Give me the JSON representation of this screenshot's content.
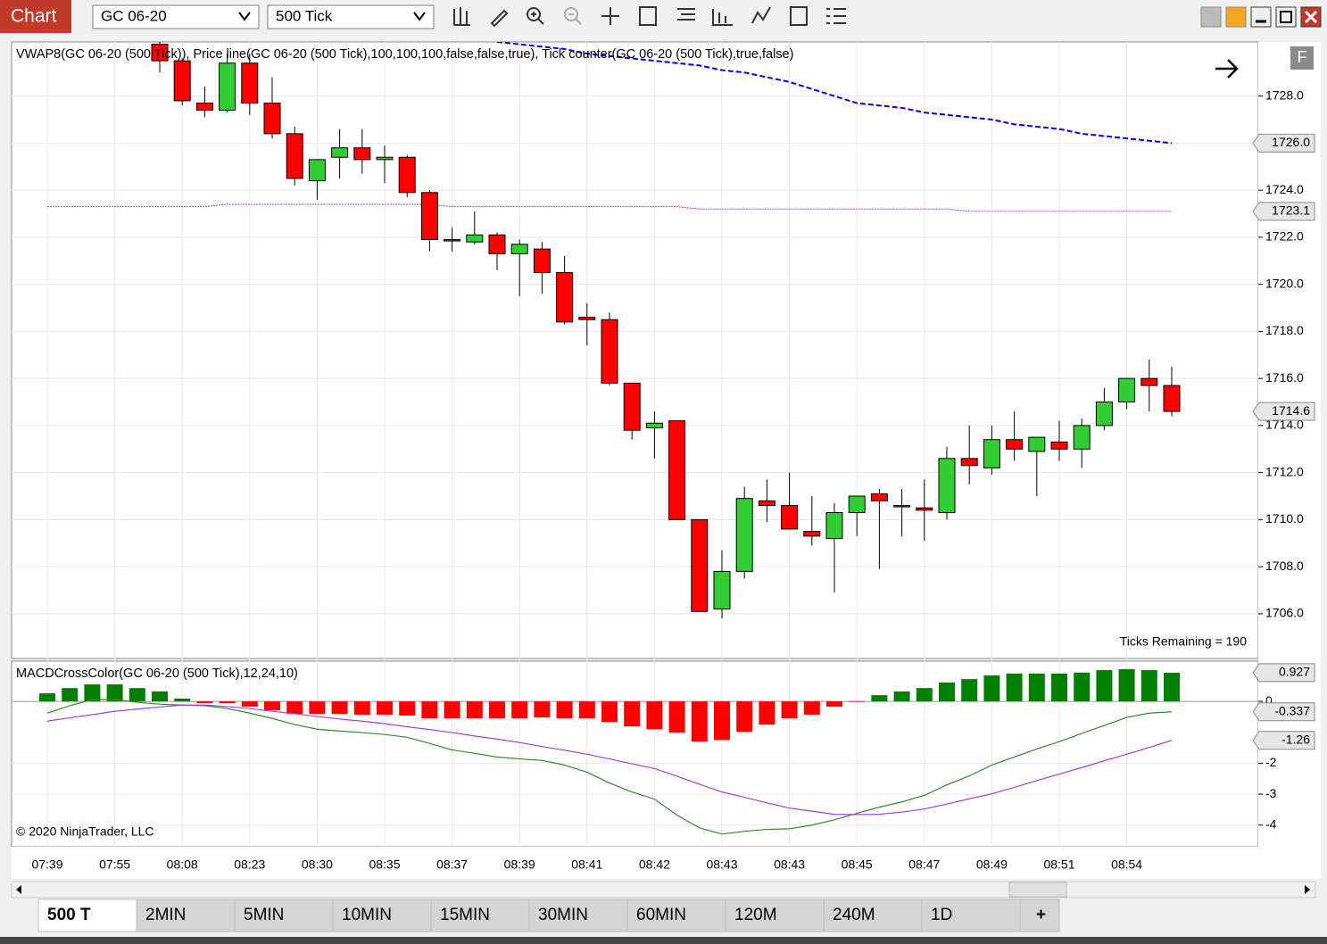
{
  "window": {
    "title": "Chart",
    "instrument": "GC 06-20",
    "interval": "500 Tick",
    "f_button": "F"
  },
  "tabs": [
    "500 T",
    "2MIN",
    "5MIN",
    "10MIN",
    "15MIN",
    "30MIN",
    "60MIN",
    "120M",
    "240M",
    "1D",
    "+"
  ],
  "chart_data": [
    {
      "type": "candlestick",
      "title": "VWAP8(GC 06-20 (500 Tick)), Price line(GC 06-20 (500 Tick),100,100,100,false,false,true), Tick counter(GC 06-20 (500 Tick),true,false)",
      "annotation": "Ticks Remaining = 190",
      "categories": [
        "07:39",
        null,
        null,
        "07:55",
        null,
        null,
        "08:08",
        null,
        null,
        "08:23",
        null,
        null,
        "08:30",
        null,
        null,
        "08:35",
        null,
        null,
        "08:37",
        null,
        null,
        "08:39",
        null,
        null,
        "08:41",
        null,
        null,
        "08:42",
        null,
        null,
        "08:43",
        null,
        null,
        "08:43",
        null,
        null,
        "08:45",
        null,
        null,
        "08:47",
        null,
        null,
        "08:49",
        null,
        null,
        "08:51",
        null,
        null,
        "08:54",
        null,
        null
      ],
      "open": [
        null,
        null,
        null,
        null,
        null,
        1730.2,
        1729.5,
        1727.7,
        1727.4,
        1729.4,
        1727.7,
        1726.4,
        1724.4,
        1725.4,
        1725.8,
        1725.3,
        1725.4,
        1723.9,
        1721.9,
        1721.8,
        1722.1,
        1721.3,
        1721.5,
        1720.5,
        1718.6,
        1718.5,
        1715.8,
        1713.9,
        1714.2,
        1710.0,
        1706.2,
        1707.8,
        1710.8,
        1710.6,
        1709.5,
        1709.2,
        1710.3,
        1711.1,
        1710.6,
        1710.5,
        1710.3,
        1712.6,
        1712.2,
        1713.4,
        1712.9,
        1713.3,
        1713.0,
        1714.0,
        1715.0,
        1716.0,
        1715.7
      ],
      "high": [
        null,
        null,
        null,
        null,
        null,
        1730.5,
        1729.6,
        1728.4,
        1729.8,
        1729.8,
        1728.8,
        1726.7,
        1725.3,
        1726.6,
        1726.6,
        1725.9,
        1725.5,
        1724.0,
        1722.4,
        1723.1,
        1722.2,
        1721.9,
        1721.8,
        1721.2,
        1719.2,
        1718.8,
        1715.8,
        1714.6,
        1714.2,
        1710.0,
        1708.7,
        1711.4,
        1711.7,
        1712.0,
        1711.0,
        1710.7,
        1711.0,
        1711.3,
        1711.3,
        1711.7,
        1713.1,
        1714.0,
        1714.0,
        1714.6,
        1713.5,
        1714.2,
        1714.3,
        1715.6,
        1716.0,
        1716.8,
        1716.5
      ],
      "low": [
        null,
        null,
        null,
        null,
        null,
        1729.0,
        1727.6,
        1727.1,
        1727.3,
        1727.2,
        1726.2,
        1724.2,
        1723.6,
        1724.5,
        1724.7,
        1724.3,
        1723.7,
        1721.4,
        1721.4,
        1721.7,
        1720.6,
        1719.5,
        1719.6,
        1718.3,
        1717.4,
        1715.7,
        1713.4,
        1712.6,
        1710.0,
        1706.1,
        1705.8,
        1707.5,
        1709.9,
        1709.6,
        1708.9,
        1706.9,
        1709.3,
        1707.9,
        1709.3,
        1709.1,
        1710.0,
        1711.5,
        1711.9,
        1712.5,
        1711.0,
        1712.5,
        1712.2,
        1713.8,
        1714.7,
        1714.6,
        1714.4
      ],
      "close": [
        null,
        null,
        null,
        null,
        null,
        1729.5,
        1727.8,
        1727.4,
        1729.4,
        1727.7,
        1726.4,
        1724.5,
        1725.3,
        1725.8,
        1725.3,
        1725.4,
        1723.9,
        1721.9,
        1721.9,
        1722.1,
        1721.3,
        1721.7,
        1720.5,
        1718.4,
        1718.5,
        1715.8,
        1713.8,
        1714.1,
        1710.0,
        1706.1,
        1707.8,
        1710.9,
        1710.6,
        1709.6,
        1709.3,
        1710.3,
        1711.0,
        1710.8,
        1710.6,
        1710.4,
        1712.6,
        1712.3,
        1713.4,
        1713.0,
        1713.5,
        1713.0,
        1714.0,
        1715.0,
        1716.0,
        1715.7,
        1714.6
      ],
      "up_color": "#32cd32",
      "down_color": "#ff0000",
      "overlays": [
        {
          "color": "#0000ff",
          "dashed": true,
          "values": [
            null,
            null,
            null,
            null,
            null,
            null,
            null,
            null,
            null,
            null,
            null,
            null,
            null,
            null,
            null,
            null,
            null,
            null,
            null,
            null,
            1730.3,
            1730.2,
            1730.1,
            1730.0,
            1729.8,
            1729.7,
            1729.6,
            1729.5,
            1729.4,
            1729.3,
            1729.1,
            1729.0,
            1728.8,
            1728.6,
            1728.3,
            1728.0,
            1727.7,
            1727.6,
            1727.5,
            1727.3,
            1727.2,
            1727.1,
            1727.0,
            1726.8,
            1726.7,
            1726.6,
            1726.4,
            1726.3,
            1726.2,
            1726.1,
            1726.0
          ]
        },
        {
          "color": "#b040b0",
          "dashed": false,
          "values": [
            1723.3,
            1723.3,
            1723.3,
            1723.3,
            1723.3,
            1723.3,
            1723.3,
            1723.3,
            1723.4,
            1723.4,
            1723.4,
            1723.4,
            1723.4,
            1723.4,
            1723.4,
            1723.4,
            1723.4,
            1723.4,
            1723.3,
            1723.3,
            1723.3,
            1723.3,
            1723.3,
            1723.3,
            1723.3,
            1723.3,
            1723.3,
            1723.3,
            1723.3,
            1723.2,
            1723.2,
            1723.2,
            1723.2,
            1723.2,
            1723.2,
            1723.2,
            1723.2,
            1723.2,
            1723.2,
            1723.2,
            1723.2,
            1723.1,
            1723.1,
            1723.1,
            1723.1,
            1723.1,
            1723.1,
            1723.1,
            1723.1,
            1723.1,
            1723.1
          ]
        }
      ],
      "ylim": [
        1704.1,
        1730.3
      ],
      "yticks": [
        {
          "value": 1706,
          "label": "1706.0"
        },
        {
          "value": 1708,
          "label": "1708.0"
        },
        {
          "value": 1710,
          "label": "1710.0"
        },
        {
          "value": 1712,
          "label": "1712.0"
        },
        {
          "value": 1714,
          "label": "1714.0"
        },
        {
          "value": 1716,
          "label": "1716.0"
        },
        {
          "value": 1718,
          "label": "1718.0"
        },
        {
          "value": 1720,
          "label": "1720.0"
        },
        {
          "value": 1722,
          "label": "1722.0"
        },
        {
          "value": 1724,
          "label": "1724.0"
        },
        {
          "value": 1726,
          "label": "1726.0"
        },
        {
          "value": 1728,
          "label": "1728.0"
        }
      ],
      "markers": [
        {
          "value": 1726,
          "label": "1726.0"
        },
        1723.1,
        1714.6
      ],
      "grid": true
    },
    {
      "type": "macd",
      "title": "MACDCrossColor(GC 06-20 (500 Tick),12,24,10)",
      "annotation": "© 2020 NinjaTrader, LLC",
      "values": [
        0.26,
        0.43,
        0.55,
        0.55,
        0.43,
        0.32,
        0.09,
        -0.06,
        -0.06,
        -0.17,
        -0.29,
        -0.41,
        -0.41,
        -0.41,
        -0.43,
        -0.43,
        -0.46,
        -0.55,
        -0.55,
        -0.55,
        -0.55,
        -0.55,
        -0.52,
        -0.55,
        -0.55,
        -0.67,
        -0.81,
        -0.9,
        -1.01,
        -1.3,
        -1.25,
        -0.99,
        -0.75,
        -0.55,
        -0.43,
        -0.17,
        -0.02,
        0.2,
        0.32,
        0.43,
        0.61,
        0.72,
        0.84,
        0.9,
        0.9,
        0.9,
        0.93,
        1.01,
        1.04,
        1.01,
        0.927
      ],
      "pos_color": "#008000",
      "neg_color": "#ff0000",
      "lines": [
        {
          "color": "#2e8b2e",
          "values": [
            -0.38,
            -0.14,
            0.06,
            0.06,
            -0.03,
            -0.09,
            -0.12,
            -0.14,
            -0.23,
            -0.38,
            -0.55,
            -0.75,
            -0.9,
            -0.96,
            -1.01,
            -1.07,
            -1.16,
            -1.36,
            -1.57,
            -1.68,
            -1.8,
            -1.86,
            -1.91,
            -2.06,
            -2.29,
            -2.64,
            -2.93,
            -3.16,
            -3.68,
            -4.09,
            -4.29,
            -4.2,
            -4.14,
            -4.12,
            -4.0,
            -3.83,
            -3.62,
            -3.42,
            -3.25,
            -3.04,
            -2.7,
            -2.41,
            -2.06,
            -1.8,
            -1.54,
            -1.3,
            -1.04,
            -0.78,
            -0.52,
            -0.38,
            -0.337
          ]
        },
        {
          "color": "#a040e0",
          "values": [
            -0.64,
            -0.53,
            -0.43,
            -0.32,
            -0.25,
            -0.18,
            -0.12,
            -0.12,
            -0.17,
            -0.23,
            -0.32,
            -0.4,
            -0.49,
            -0.57,
            -0.64,
            -0.72,
            -0.82,
            -0.91,
            -1.01,
            -1.12,
            -1.22,
            -1.33,
            -1.46,
            -1.58,
            -1.71,
            -1.86,
            -2.02,
            -2.17,
            -2.42,
            -2.68,
            -2.93,
            -3.1,
            -3.28,
            -3.45,
            -3.55,
            -3.65,
            -3.66,
            -3.65,
            -3.58,
            -3.48,
            -3.32,
            -3.15,
            -2.99,
            -2.78,
            -2.56,
            -2.35,
            -2.14,
            -1.92,
            -1.71,
            -1.49,
            -1.26
          ]
        }
      ],
      "ylim": [
        -4.7,
        1.3
      ],
      "yticks": [
        0,
        -2,
        -3,
        -4
      ],
      "markers": [
        0.927,
        -0.337,
        -1.26
      ],
      "grid": true
    }
  ]
}
